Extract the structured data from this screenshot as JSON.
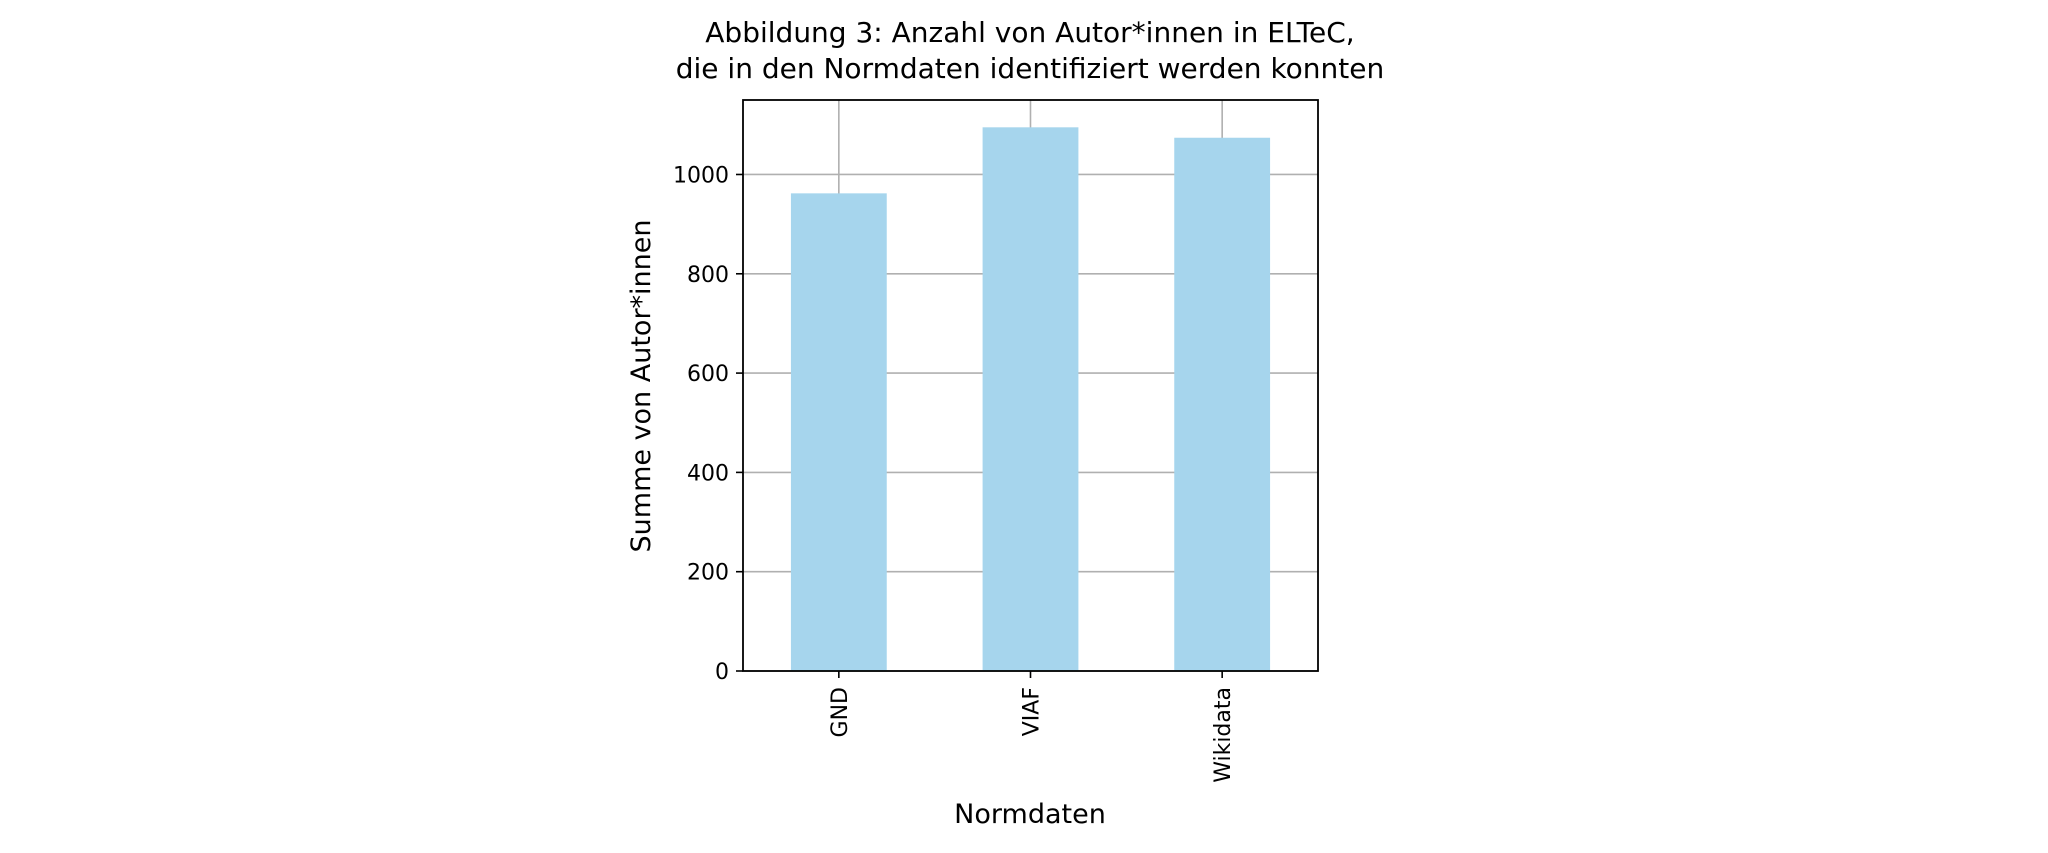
{
  "chart_data": {
    "type": "bar",
    "title_line1": "Abbildung 3: Anzahl von Autor*innen in ELTeC,",
    "title_line2": "die in den Normdaten identifiziert werden konnten",
    "xlabel": "Normdaten",
    "ylabel": "Summe von Autor*innen",
    "categories": [
      "GND",
      "VIAF",
      "Wikidata"
    ],
    "values": [
      962,
      1095,
      1074
    ],
    "ylim": [
      0,
      1150
    ],
    "yticks": [
      0,
      200,
      400,
      600,
      800,
      1000
    ],
    "grid": true,
    "bar_color": "#a6d5ed",
    "x_tick_rotation": "vertical"
  }
}
